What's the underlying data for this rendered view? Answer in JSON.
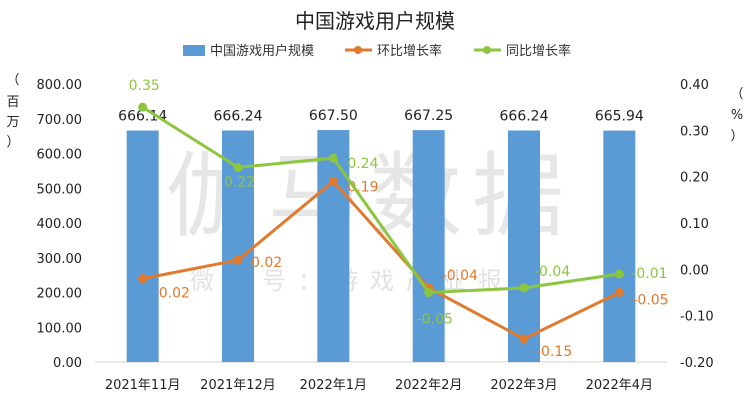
{
  "watermark": {
    "main": "伽马数据",
    "sub": "微信号：游戏产业报告"
  },
  "chart_data": {
    "type": "bar",
    "title": "中国游戏用户规模",
    "categories": [
      "2021年11月",
      "2021年12月",
      "2022年1月",
      "2022年2月",
      "2022年3月",
      "2022年4月"
    ],
    "left_axis": {
      "label_chars": [
        "（",
        "百",
        "万",
        "）"
      ],
      "ylim": [
        0,
        800
      ],
      "ticks": [
        "0.00",
        "100.00",
        "200.00",
        "300.00",
        "400.00",
        "500.00",
        "600.00",
        "700.00",
        "800.00"
      ]
    },
    "right_axis": {
      "label_chars": [
        "（",
        "%",
        "）"
      ],
      "ylim": [
        -0.2,
        0.4
      ],
      "ticks": [
        "-0.20",
        "-0.10",
        "0.00",
        "0.10",
        "0.20",
        "0.30",
        "0.40"
      ]
    },
    "series": [
      {
        "name": "中国游戏用户规模",
        "type": "bar",
        "axis": "left",
        "color": "#5B9BD5",
        "values": [
          666.14,
          666.24,
          667.5,
          667.25,
          666.24,
          665.94
        ],
        "labels": [
          "666.14",
          "666.24",
          "667.50",
          "667.25",
          "666.24",
          "665.94"
        ]
      },
      {
        "name": "环比增长率",
        "type": "line",
        "axis": "right",
        "color": "#E07A2E",
        "values": [
          -0.02,
          0.02,
          0.19,
          -0.04,
          -0.15,
          -0.05
        ],
        "labels": [
          "-0.02",
          "0.02",
          "0.19",
          "-0.04",
          "-0.15",
          "-0.05"
        ]
      },
      {
        "name": "同比增长率",
        "type": "line",
        "axis": "right",
        "color": "#8CC63F",
        "values": [
          0.35,
          0.22,
          0.24,
          -0.05,
          -0.04,
          -0.01
        ],
        "labels": [
          "0.35",
          "0.22",
          "0.24",
          "-0.05",
          "-0.04",
          "-0.01"
        ]
      }
    ],
    "legend": "top-center",
    "grid": false
  }
}
